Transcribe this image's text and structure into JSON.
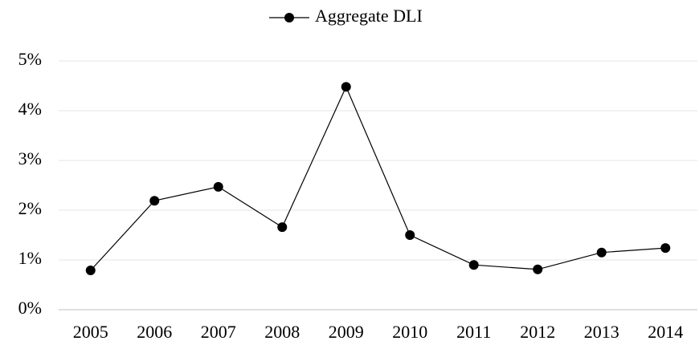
{
  "chart_data": {
    "type": "line",
    "categories": [
      "2005",
      "2006",
      "2007",
      "2008",
      "2009",
      "2010",
      "2011",
      "2012",
      "2013",
      "2014"
    ],
    "series": [
      {
        "name": "Aggregate DLI",
        "color": "#000000",
        "values": [
          0.79,
          2.19,
          2.47,
          1.66,
          4.48,
          1.5,
          0.9,
          0.81,
          1.15,
          1.24
        ]
      }
    ],
    "ylim": [
      0,
      5
    ],
    "yticks": [
      {
        "value": 0,
        "label": "0%"
      },
      {
        "value": 1,
        "label": "1%"
      },
      {
        "value": 2,
        "label": "2%"
      },
      {
        "value": 3,
        "label": "3%"
      },
      {
        "value": 4,
        "label": "4%"
      },
      {
        "value": 5,
        "label": "5%"
      }
    ],
    "grid": true,
    "legend": "top"
  }
}
